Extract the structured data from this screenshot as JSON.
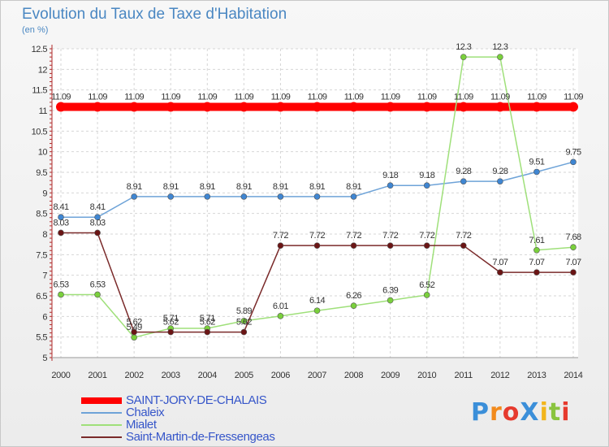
{
  "chart_data": {
    "type": "line",
    "title": "Evolution du Taux de Taxe d'Habitation",
    "subtitle": "(en %)",
    "x": [
      "2000",
      "2001",
      "2002",
      "2003",
      "2004",
      "2005",
      "2006",
      "2007",
      "2008",
      "2009",
      "2010",
      "2011",
      "2012",
      "2013",
      "2014"
    ],
    "ylim": [
      5,
      12.5
    ],
    "yticks": [
      "5",
      "5.5",
      "6",
      "6.5",
      "7",
      "7.5",
      "8",
      "8.5",
      "9",
      "9.5",
      "10",
      "10.5",
      "11",
      "11.5",
      "12",
      "12.5"
    ],
    "grid": true,
    "series": [
      {
        "name": "SAINT-JORY-DE-CHALAIS",
        "color": "#ff0000",
        "width": 10,
        "point_fill": "#ff0000",
        "values": [
          11.09,
          11.09,
          11.09,
          11.09,
          11.09,
          11.09,
          11.09,
          11.09,
          11.09,
          11.09,
          11.09,
          11.09,
          11.09,
          11.09,
          11.09
        ],
        "labels": [
          "11.09",
          "11.09",
          "11.09",
          "11.09",
          "11.09",
          "11.09",
          "11.09",
          "11.09",
          "11.09",
          "11.09",
          "11.09",
          "11.09",
          "11.09",
          "11.09",
          "11.09"
        ]
      },
      {
        "name": "Chaleix",
        "color": "#6ea3d8",
        "width": 1.5,
        "point_fill": "#3f86d2",
        "values": [
          8.41,
          8.41,
          8.91,
          8.91,
          8.91,
          8.91,
          8.91,
          8.91,
          8.91,
          9.18,
          9.18,
          9.28,
          9.28,
          9.51,
          9.75
        ],
        "labels": [
          "8.41",
          "8.41",
          "8.91",
          "8.91",
          "8.91",
          "8.91",
          "8.91",
          "8.91",
          "8.91",
          "9.18",
          "9.18",
          "9.28",
          "9.28",
          "9.51",
          "9.75"
        ]
      },
      {
        "name": "Mialet",
        "color": "#9fe07a",
        "width": 1.5,
        "point_fill": "#7ad03c",
        "values": [
          6.53,
          6.53,
          5.49,
          5.71,
          5.71,
          5.89,
          6.01,
          6.14,
          6.26,
          6.39,
          6.52,
          12.3,
          12.3,
          7.61,
          7.68
        ],
        "labels": [
          "6.53",
          "6.53",
          "5.49",
          "5.71",
          "5.71",
          "5.89",
          "6.01",
          "6.14",
          "6.26",
          "6.39",
          "6.52",
          "12.3",
          "12.3",
          "7.61",
          "7.68"
        ]
      },
      {
        "name": "Saint-Martin-de-Fressengeas",
        "color": "#7a2a2a",
        "width": 1.5,
        "point_fill": "#6b1515",
        "values": [
          8.03,
          8.03,
          5.62,
          5.62,
          5.62,
          5.62,
          7.72,
          7.72,
          7.72,
          7.72,
          7.72,
          7.72,
          7.07,
          7.07,
          7.07
        ],
        "labels": [
          "8.03",
          "8.03",
          "5.62",
          "5.62",
          "5.62",
          "5.62",
          "7.72",
          "7.72",
          "7.72",
          "7.72",
          "7.72",
          "7.72",
          "7.07",
          "7.07",
          "7.07"
        ]
      }
    ]
  },
  "logo": {
    "text": "ProXiti",
    "letters": [
      "P",
      "r",
      "o",
      "X",
      "i",
      "t",
      "i"
    ],
    "colors": [
      "#3b8fd9",
      "#f28a1c",
      "#e63a2e",
      "#3b8fd9",
      "#f2b51c",
      "#8ac43f",
      "#e63a2e"
    ]
  }
}
